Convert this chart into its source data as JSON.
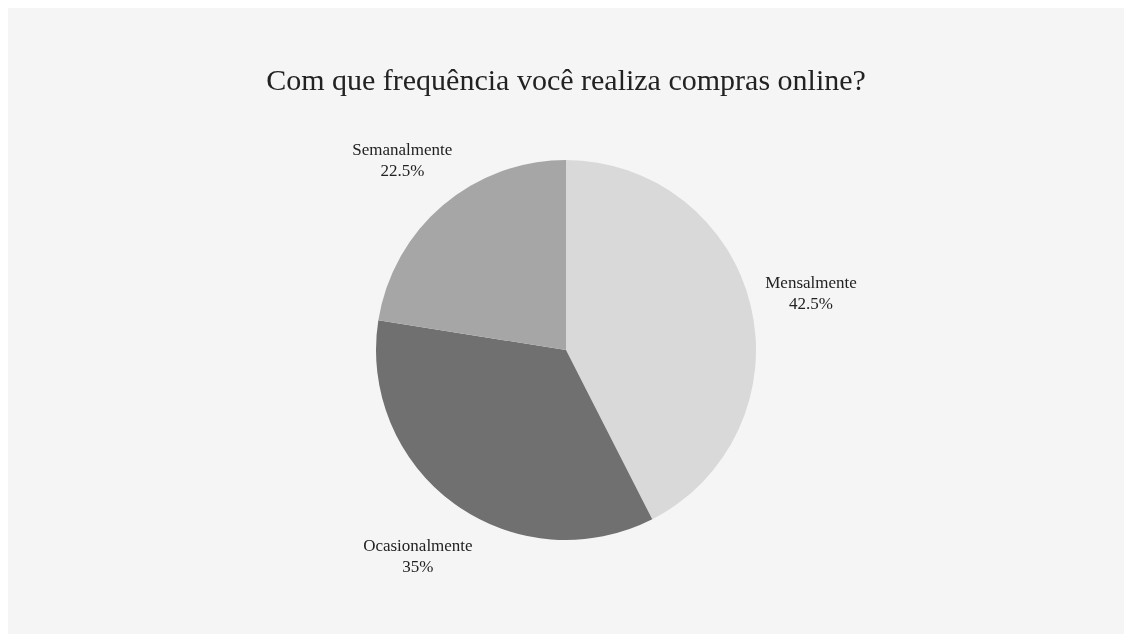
{
  "chart_data": {
    "type": "pie",
    "title": "Com que frequência você realiza compras online?",
    "categories": [
      "Mensalmente",
      "Ocasionalmente",
      "Semanalmente"
    ],
    "values": [
      42.5,
      35,
      22.5
    ],
    "colors": [
      "#d9d9d9",
      "#707070",
      "#a6a6a6"
    ],
    "value_labels": [
      "42.5%",
      "35%",
      "22.5%"
    ],
    "legend": false
  }
}
